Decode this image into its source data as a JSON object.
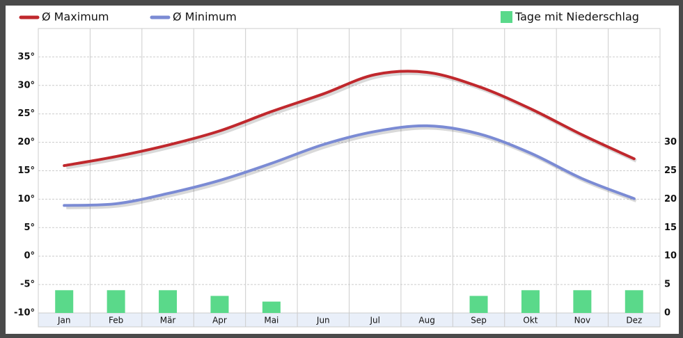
{
  "chart_data": {
    "type": "line",
    "categories": [
      "Jan",
      "Feb",
      "Mär",
      "Apr",
      "Mai",
      "Jun",
      "Jul",
      "Aug",
      "Sep",
      "Okt",
      "Nov",
      "Dez"
    ],
    "series": [
      {
        "name": "Ø Maximum",
        "color": "#c0282d",
        "type": "line",
        "values": [
          15.9,
          17.5,
          19.5,
          22,
          25.4,
          28.5,
          31.9,
          32.3,
          29.8,
          25.9,
          21.3,
          17.1
        ]
      },
      {
        "name": "Ø Minimum",
        "color": "#7b8bd4",
        "type": "line",
        "values": [
          8.9,
          9.2,
          11,
          13.3,
          16.3,
          19.6,
          21.9,
          22.9,
          21.5,
          18.1,
          13.6,
          10.1
        ]
      },
      {
        "name": "Tage mit Niederschlag",
        "color": "#5ad98a",
        "type": "bar",
        "axis": "y2",
        "values": [
          4,
          4,
          4,
          3,
          2,
          0,
          0,
          0,
          3,
          4,
          4,
          4
        ]
      }
    ],
    "ylim": [
      -10,
      40
    ],
    "yticks": [
      {
        "value": -10,
        "label": "-10°"
      },
      {
        "value": -5,
        "label": "-5°"
      },
      {
        "value": 0,
        "label": "0°"
      },
      {
        "value": 5,
        "label": "5°"
      },
      {
        "value": 10,
        "label": "10°"
      },
      {
        "value": 15,
        "label": "15°"
      },
      {
        "value": 20,
        "label": "20°"
      },
      {
        "value": 25,
        "label": "25°"
      },
      {
        "value": 30,
        "label": "30°"
      },
      {
        "value": 35,
        "label": "35°"
      }
    ],
    "y2lim": [
      0,
      50
    ],
    "y2ticks": [
      0,
      5,
      10,
      15,
      20,
      25,
      30
    ],
    "grid": true
  }
}
